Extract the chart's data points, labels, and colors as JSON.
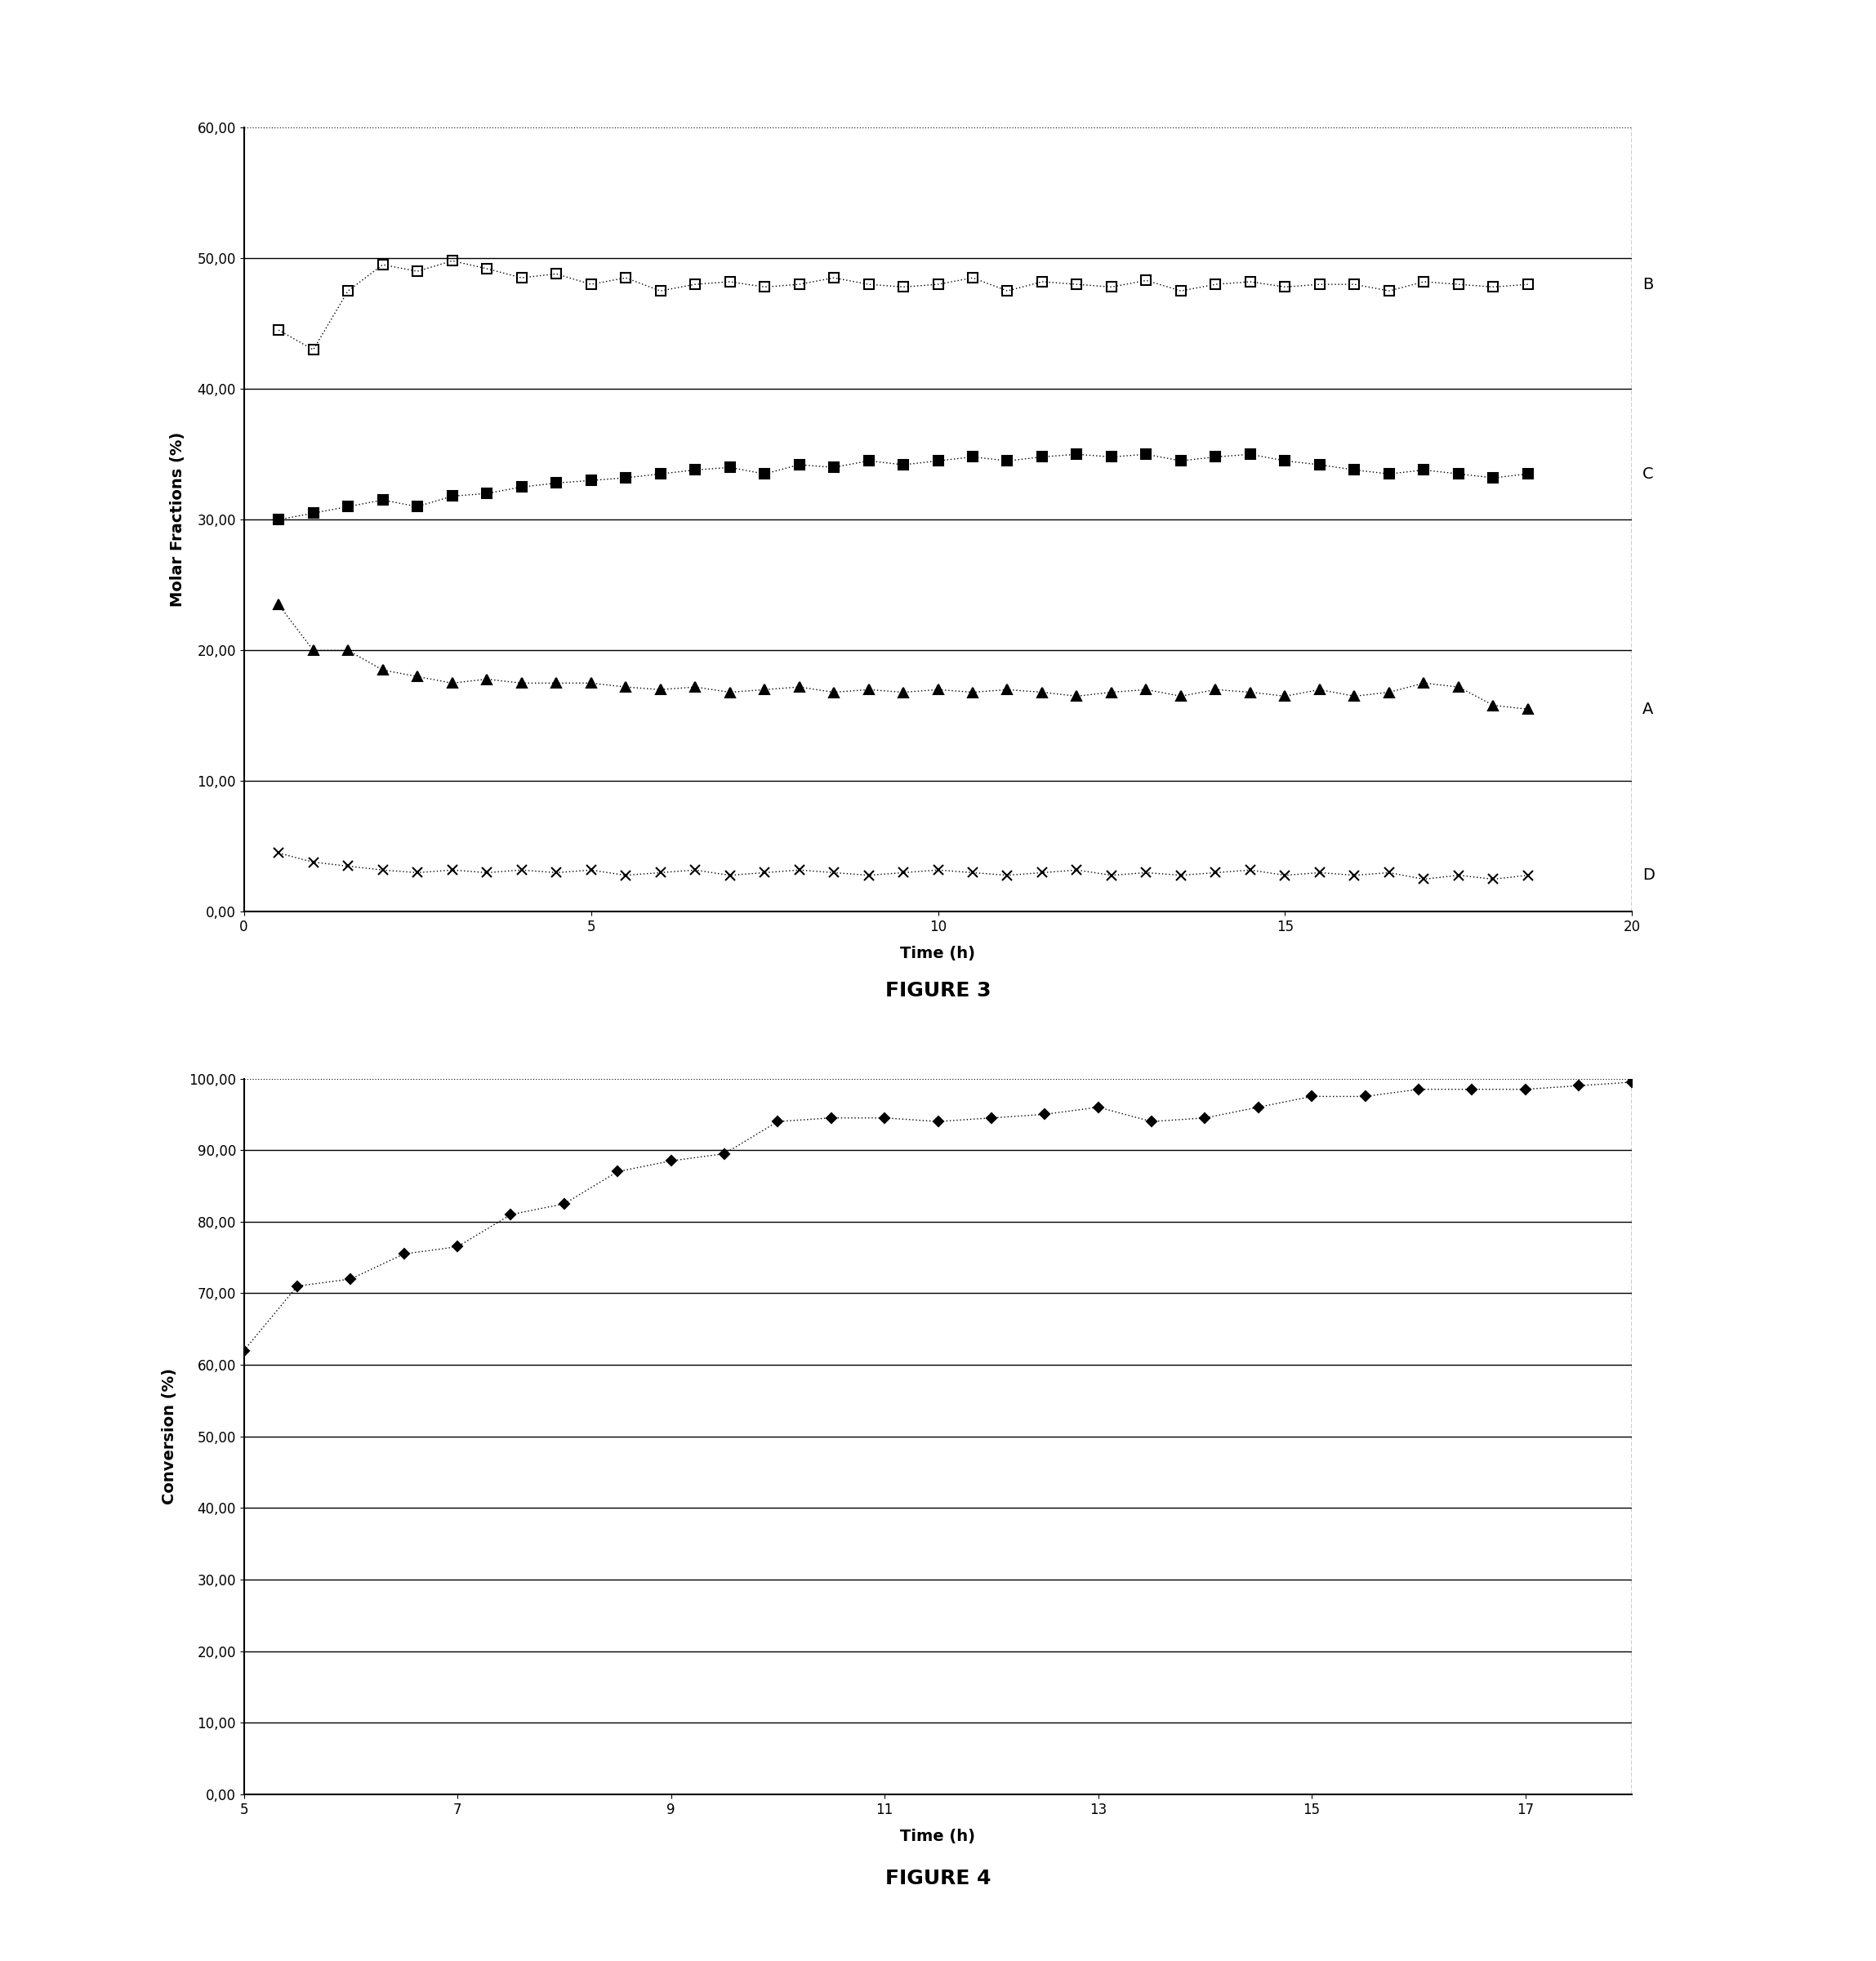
{
  "fig3": {
    "title": "FIGURE 3",
    "xlabel": "Time (h)",
    "ylabel": "Molar Fractions (%)",
    "xlim": [
      0,
      20
    ],
    "ylim": [
      0,
      60
    ],
    "yticks": [
      0,
      10,
      20,
      30,
      40,
      50,
      60
    ],
    "xticks": [
      0,
      5,
      10,
      15,
      20
    ],
    "series_B": {
      "label": "B",
      "x": [
        0.5,
        1.0,
        1.5,
        2.0,
        2.5,
        3.0,
        3.5,
        4.0,
        4.5,
        5.0,
        5.5,
        6.0,
        6.5,
        7.0,
        7.5,
        8.0,
        8.5,
        9.0,
        9.5,
        10.0,
        10.5,
        11.0,
        11.5,
        12.0,
        12.5,
        13.0,
        13.5,
        14.0,
        14.5,
        15.0,
        15.5,
        16.0,
        16.5,
        17.0,
        17.5,
        18.0,
        18.5
      ],
      "y": [
        44.5,
        43.0,
        47.5,
        49.5,
        49.0,
        49.8,
        49.2,
        48.5,
        48.8,
        48.0,
        48.5,
        47.5,
        48.0,
        48.2,
        47.8,
        48.0,
        48.5,
        48.0,
        47.8,
        48.0,
        48.5,
        47.5,
        48.2,
        48.0,
        47.8,
        48.3,
        47.5,
        48.0,
        48.2,
        47.8,
        48.0,
        48.0,
        47.5,
        48.2,
        48.0,
        47.8,
        48.0
      ],
      "marker": "s",
      "fillstyle": "none",
      "linestyle": "dotted",
      "color": "black",
      "markersize": 8
    },
    "series_C": {
      "label": "C",
      "x": [
        0.5,
        1.0,
        1.5,
        2.0,
        2.5,
        3.0,
        3.5,
        4.0,
        4.5,
        5.0,
        5.5,
        6.0,
        6.5,
        7.0,
        7.5,
        8.0,
        8.5,
        9.0,
        9.5,
        10.0,
        10.5,
        11.0,
        11.5,
        12.0,
        12.5,
        13.0,
        13.5,
        14.0,
        14.5,
        15.0,
        15.5,
        16.0,
        16.5,
        17.0,
        17.5,
        18.0,
        18.5
      ],
      "y": [
        30.0,
        30.5,
        31.0,
        31.5,
        31.0,
        31.8,
        32.0,
        32.5,
        32.8,
        33.0,
        33.2,
        33.5,
        33.8,
        34.0,
        33.5,
        34.2,
        34.0,
        34.5,
        34.2,
        34.5,
        34.8,
        34.5,
        34.8,
        35.0,
        34.8,
        35.0,
        34.5,
        34.8,
        35.0,
        34.5,
        34.2,
        33.8,
        33.5,
        33.8,
        33.5,
        33.2,
        33.5
      ],
      "marker": "s",
      "fillstyle": "full",
      "linestyle": "dotted",
      "color": "black",
      "markersize": 8
    },
    "series_A": {
      "label": "A",
      "x": [
        0.5,
        1.0,
        1.5,
        2.0,
        2.5,
        3.0,
        3.5,
        4.0,
        4.5,
        5.0,
        5.5,
        6.0,
        6.5,
        7.0,
        7.5,
        8.0,
        8.5,
        9.0,
        9.5,
        10.0,
        10.5,
        11.0,
        11.5,
        12.0,
        12.5,
        13.0,
        13.5,
        14.0,
        14.5,
        15.0,
        15.5,
        16.0,
        16.5,
        17.0,
        17.5,
        18.0,
        18.5
      ],
      "y": [
        23.5,
        20.0,
        20.0,
        18.5,
        18.0,
        17.5,
        17.8,
        17.5,
        17.5,
        17.5,
        17.2,
        17.0,
        17.2,
        16.8,
        17.0,
        17.2,
        16.8,
        17.0,
        16.8,
        17.0,
        16.8,
        17.0,
        16.8,
        16.5,
        16.8,
        17.0,
        16.5,
        17.0,
        16.8,
        16.5,
        17.0,
        16.5,
        16.8,
        17.5,
        17.2,
        15.8,
        15.5
      ],
      "marker": "^",
      "fillstyle": "full",
      "linestyle": "dotted",
      "color": "black",
      "markersize": 8
    },
    "series_D": {
      "label": "D",
      "x": [
        0.5,
        1.0,
        1.5,
        2.0,
        2.5,
        3.0,
        3.5,
        4.0,
        4.5,
        5.0,
        5.5,
        6.0,
        6.5,
        7.0,
        7.5,
        8.0,
        8.5,
        9.0,
        9.5,
        10.0,
        10.5,
        11.0,
        11.5,
        12.0,
        12.5,
        13.0,
        13.5,
        14.0,
        14.5,
        15.0,
        15.5,
        16.0,
        16.5,
        17.0,
        17.5,
        18.0,
        18.5
      ],
      "y": [
        4.5,
        3.8,
        3.5,
        3.2,
        3.0,
        3.2,
        3.0,
        3.2,
        3.0,
        3.2,
        2.8,
        3.0,
        3.2,
        2.8,
        3.0,
        3.2,
        3.0,
        2.8,
        3.0,
        3.2,
        3.0,
        2.8,
        3.0,
        3.2,
        2.8,
        3.0,
        2.8,
        3.0,
        3.2,
        2.8,
        3.0,
        2.8,
        3.0,
        2.5,
        2.8,
        2.5,
        2.8
      ],
      "marker": "x",
      "fillstyle": "full",
      "linestyle": "dotted",
      "color": "black",
      "markersize": 8
    }
  },
  "fig4": {
    "title": "FIGURE 4",
    "xlabel": "Time (h)",
    "ylabel": "Conversion (%)",
    "xlim": [
      5,
      18
    ],
    "ylim": [
      0,
      100
    ],
    "yticks": [
      0,
      10,
      20,
      30,
      40,
      50,
      60,
      70,
      80,
      90,
      100
    ],
    "xticks": [
      5,
      7,
      9,
      11,
      13,
      15,
      17
    ],
    "series_conv": {
      "x": [
        5.0,
        5.5,
        6.0,
        6.5,
        7.0,
        7.5,
        8.0,
        8.5,
        9.0,
        9.5,
        10.0,
        10.5,
        11.0,
        11.5,
        12.0,
        12.5,
        13.0,
        13.5,
        14.0,
        14.5,
        15.0,
        15.5,
        16.0,
        16.5,
        17.0,
        17.5,
        18.0
      ],
      "y": [
        62.0,
        71.0,
        72.0,
        75.5,
        76.5,
        81.0,
        82.5,
        87.0,
        88.5,
        89.5,
        94.0,
        94.5,
        94.5,
        94.0,
        94.5,
        95.0,
        96.0,
        94.0,
        94.5,
        96.0,
        97.5,
        97.5,
        98.5,
        98.5,
        98.5,
        99.0,
        99.5
      ],
      "marker": "D",
      "fillstyle": "full",
      "linestyle": "dotted",
      "color": "black",
      "markersize": 6
    }
  },
  "figure_title_fontsize": 18,
  "axis_label_fontsize": 14,
  "tick_label_fontsize": 12
}
